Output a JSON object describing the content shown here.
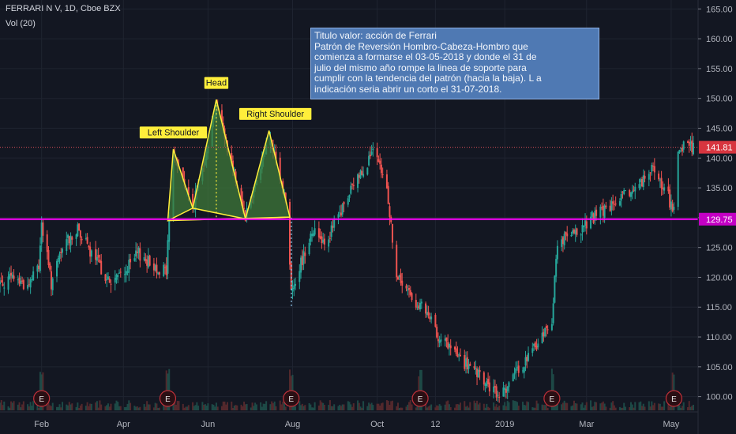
{
  "header": {
    "symbol": "FERRARI N V, 1D, Cboe BZX",
    "volume": "Vol (20)"
  },
  "annotation": {
    "lines": [
      "Titulo valor: acción de Ferrari",
      "Patrón de Reversión Hombro-Cabeza-Hombro que",
      "comienza a formarse el 03-05-2018 y donde el 31 de",
      "julio del mismo año rompe la linea de soporte para",
      "cumplir con la tendencia del patrón (hacia la baja). L a",
      "indicación seria abrir un corto el 31-07-2018."
    ]
  },
  "pattern_labels": {
    "left": "Left Shoulder",
    "head": "Head",
    "right": "Right Shoulder"
  },
  "earnings_marker": "E",
  "colors": {
    "background": "#131722",
    "up": "#26a69a",
    "down": "#ef5350",
    "price_line": "#e0505a",
    "support": "#ff00ff",
    "pattern_fill": "#3f7a3a",
    "pattern_line": "#ffee3b",
    "label_bg": "#ffee3b"
  },
  "chart_data": {
    "type": "candlestick",
    "y_ticks": [
      100,
      105,
      110,
      115,
      120,
      125,
      130,
      135,
      140,
      145,
      150,
      155,
      160,
      165
    ],
    "y_tick_labels": [
      "100.00",
      "105.00",
      "110.00",
      "115.00",
      "120.00",
      "125.00",
      "130.00",
      "135.00",
      "140.00",
      "145.00",
      "150.00",
      "155.00",
      "160.00",
      "165.00"
    ],
    "ylim": [
      97.7,
      166.5
    ],
    "x_ticks": [
      "Feb",
      "Apr",
      "Jun",
      "Aug",
      "Oct",
      "12",
      "2019",
      "Mar",
      "May"
    ],
    "x_tick_dates": [
      "2018-02-01",
      "2018-04-01",
      "2018-06-01",
      "2018-08-01",
      "2018-10-01",
      "2018-11-12",
      "2019-01-01",
      "2019-03-01",
      "2019-05-01"
    ],
    "date_range": [
      "2018-01-02",
      "2019-05-17"
    ],
    "last_price": 141.81,
    "last_price_label": "141.81",
    "support_level": 129.75,
    "support_label": "129.75",
    "earnings_dates": [
      "2018-02-01",
      "2018-05-03",
      "2018-07-31",
      "2018-11-01",
      "2019-02-04",
      "2019-05-03"
    ],
    "head_and_shoulders": {
      "neckline": [
        {
          "date": "2018-05-03",
          "price": 129.5
        },
        {
          "date": "2018-07-30",
          "price": 130.1
        }
      ],
      "left_shoulder": [
        {
          "date": "2018-05-03",
          "price": 129.5
        },
        {
          "date": "2018-05-07",
          "price": 141.5
        },
        {
          "date": "2018-05-21",
          "price": 131.6
        }
      ],
      "head": [
        {
          "date": "2018-05-21",
          "price": 131.6
        },
        {
          "date": "2018-06-07",
          "price": 149.8
        },
        {
          "date": "2018-06-28",
          "price": 129.8
        }
      ],
      "right_shoulder": [
        {
          "date": "2018-06-28",
          "price": 129.8
        },
        {
          "date": "2018-07-15",
          "price": 144.6
        },
        {
          "date": "2018-07-30",
          "price": 130.1
        }
      ]
    },
    "price_anchors": [
      {
        "date": "2018-01-02",
        "price": 119
      },
      {
        "date": "2018-01-12",
        "price": 120
      },
      {
        "date": "2018-01-22",
        "price": 118.5
      },
      {
        "date": "2018-01-30",
        "price": 122
      },
      {
        "date": "2018-02-01",
        "price": 129
      },
      {
        "date": "2018-02-08",
        "price": 119
      },
      {
        "date": "2018-02-18",
        "price": 126
      },
      {
        "date": "2018-02-28",
        "price": 128
      },
      {
        "date": "2018-03-08",
        "price": 124
      },
      {
        "date": "2018-03-15",
        "price": 122
      },
      {
        "date": "2018-03-22",
        "price": 119
      },
      {
        "date": "2018-04-02",
        "price": 121
      },
      {
        "date": "2018-04-12",
        "price": 124
      },
      {
        "date": "2018-04-22",
        "price": 122
      },
      {
        "date": "2018-05-02",
        "price": 121
      },
      {
        "date": "2018-05-03",
        "price": 126
      },
      {
        "date": "2018-05-07",
        "price": 141
      },
      {
        "date": "2018-05-21",
        "price": 131.5
      },
      {
        "date": "2018-06-07",
        "price": 149
      },
      {
        "date": "2018-06-28",
        "price": 130.5
      },
      {
        "date": "2018-07-15",
        "price": 143.5
      },
      {
        "date": "2018-07-27",
        "price": 133
      },
      {
        "date": "2018-07-31",
        "price": 118
      },
      {
        "date": "2018-08-05",
        "price": 121
      },
      {
        "date": "2018-08-15",
        "price": 128
      },
      {
        "date": "2018-08-25",
        "price": 126
      },
      {
        "date": "2018-09-05",
        "price": 131
      },
      {
        "date": "2018-09-15",
        "price": 136
      },
      {
        "date": "2018-09-28",
        "price": 141
      },
      {
        "date": "2018-10-08",
        "price": 135
      },
      {
        "date": "2018-10-15",
        "price": 120
      },
      {
        "date": "2018-10-25",
        "price": 117
      },
      {
        "date": "2018-11-05",
        "price": 114
      },
      {
        "date": "2018-11-15",
        "price": 110
      },
      {
        "date": "2018-12-01",
        "price": 106
      },
      {
        "date": "2018-12-15",
        "price": 103
      },
      {
        "date": "2018-12-27",
        "price": 100
      },
      {
        "date": "2019-01-10",
        "price": 104
      },
      {
        "date": "2019-01-25",
        "price": 109
      },
      {
        "date": "2019-02-04",
        "price": 113
      },
      {
        "date": "2019-02-08",
        "price": 126
      },
      {
        "date": "2019-02-20",
        "price": 127
      },
      {
        "date": "2019-03-05",
        "price": 130
      },
      {
        "date": "2019-03-20",
        "price": 132
      },
      {
        "date": "2019-04-05",
        "price": 135
      },
      {
        "date": "2019-04-18",
        "price": 138
      },
      {
        "date": "2019-04-28",
        "price": 134
      },
      {
        "date": "2019-05-03",
        "price": 131
      },
      {
        "date": "2019-05-06",
        "price": 140
      },
      {
        "date": "2019-05-11",
        "price": 143
      },
      {
        "date": "2019-05-17",
        "price": 141.8
      }
    ]
  }
}
